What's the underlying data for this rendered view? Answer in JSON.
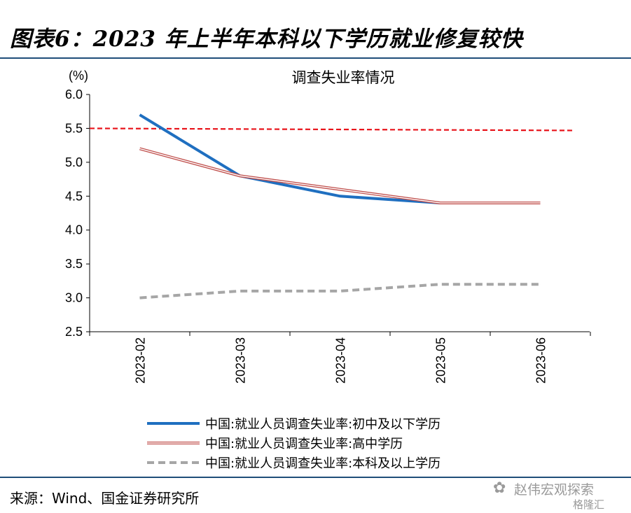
{
  "figure": {
    "title": "图表6：2023 年上半年本科以下学历就业修复较快",
    "source": "来源：Wind、国金证券研究所",
    "watermark": "赵伟宏观探索",
    "watermark_badge": "格隆汇"
  },
  "chart_data": {
    "type": "line",
    "title": "调查失业率情况",
    "ylabel": "(%)",
    "xlabel": "",
    "categories": [
      "2023-02",
      "2023-03",
      "2023-04",
      "2023-05",
      "2023-06"
    ],
    "ylim": [
      2.5,
      6.0
    ],
    "yticks": [
      "6.0",
      "5.5",
      "5.0",
      "4.5",
      "4.0",
      "3.5",
      "3.0",
      "2.5"
    ],
    "grid": false,
    "legend_position": "bottom",
    "series": [
      {
        "name": "中国:就业人员调查失业率:初中及以下学历",
        "values": [
          5.7,
          4.8,
          4.5,
          4.4,
          4.4
        ],
        "color": "#1f6fc0",
        "style": "solid-thick"
      },
      {
        "name": "中国:就业人员调查失业率:高中学历",
        "values": [
          5.2,
          4.8,
          4.6,
          4.4,
          4.4
        ],
        "color": "#c0504d",
        "style": "double"
      },
      {
        "name": "中国:就业人员调查失业率:本科及以上学历",
        "values": [
          3.0,
          3.1,
          3.1,
          3.2,
          3.2
        ],
        "color": "#a6a6a6",
        "style": "dashed"
      }
    ],
    "reference_line": {
      "value": 5.5,
      "color": "#e8141b",
      "style": "dashed"
    }
  }
}
